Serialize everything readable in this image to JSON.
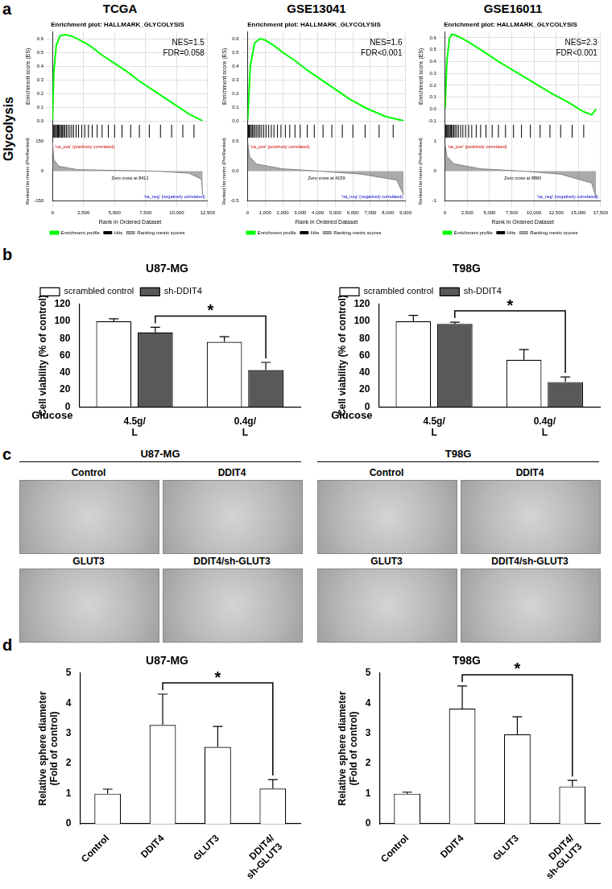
{
  "panel_labels": [
    "a",
    "b",
    "c",
    "d"
  ],
  "row_label": "Glycolysis",
  "chart_data": [
    {
      "type": "line",
      "title": "TCGA",
      "subtitle": "Enrichment plot: HALLMARK_GLYCOLYSIS",
      "xlabel": "Rank in Ordered Dataset",
      "ylabel": "Enrichment score (ES)",
      "y2label": "Ranked list metric (PreRanked)",
      "annotations": [
        "NES=1.5",
        "FDR=0.058"
      ],
      "metric_annotations": [
        "'na_pos' (positively correlated)",
        "Zero cross at 8412",
        "'na_neg' (negatively correlated)"
      ],
      "xlim": [
        0,
        12500
      ],
      "xticks": [
        0,
        {
          "value": 2500,
          "label": "2,500"
        },
        {
          "value": 5000,
          "label": "5,000"
        },
        {
          "value": 7500,
          "label": "7,500"
        },
        {
          "value": 10000,
          "label": "10,000"
        },
        {
          "value": 12500,
          "label": "12,500"
        }
      ],
      "ylim": [
        0,
        0.65
      ],
      "yticks": [
        {
          "value": 0,
          "label": "0.0"
        },
        0.1,
        0.2,
        0.3,
        0.4,
        0.5,
        0.6
      ],
      "y2lim": [
        -150,
        150
      ],
      "y2ticks": [
        -150,
        0,
        150
      ],
      "grid": true,
      "legend": "bottom",
      "series": [
        {
          "name": "Enrichment profile",
          "color": "#00ff00",
          "x": [
            0,
            100,
            300,
            600,
            1000,
            1500,
            2000,
            3000,
            4000,
            5000,
            6000,
            7000,
            8000,
            9000,
            10000,
            11000,
            12100
          ],
          "values": [
            0,
            0.35,
            0.55,
            0.62,
            0.63,
            0.62,
            0.6,
            0.55,
            0.48,
            0.42,
            0.36,
            0.29,
            0.23,
            0.17,
            0.11,
            0.05,
            0
          ]
        },
        {
          "name": "Ranking metric scores",
          "color": "#808080",
          "axis": "y2",
          "x": [
            0,
            100,
            500,
            2000,
            8412,
            11000,
            12000,
            12100
          ],
          "values": [
            150,
            60,
            25,
            8,
            0,
            -10,
            -40,
            -120
          ]
        }
      ],
      "hits": {
        "name": "Hits",
        "color": "#000000",
        "marker": "line",
        "x": [
          60,
          120,
          180,
          250,
          320,
          400,
          470,
          550,
          640,
          720,
          810,
          900,
          1000,
          1120,
          1250,
          1400,
          1550,
          1700,
          1900,
          2100,
          2350,
          2600,
          2900,
          3200,
          3600,
          4000,
          4500,
          5000,
          5600,
          6300,
          7000,
          7800,
          8700,
          9600,
          10500,
          11400
        ]
      }
    },
    {
      "type": "line",
      "title": "GSE13041",
      "subtitle": "Enrichment plot: HALLMARK_GLYCOLYSIS",
      "xlabel": "Rank in Ordered Dataset",
      "ylabel": "Enrichment score (ES)",
      "y2label": "Ranked list metric (PreRanked)",
      "annotations": [
        "NES=1.6",
        "FDR<0.001"
      ],
      "metric_annotations": [
        "'na_pos' (positively correlated)",
        "Zero cross at 4159",
        "'na_neg' (negatively correlated)"
      ],
      "xlim": [
        0,
        9000
      ],
      "xticks": [
        0,
        {
          "value": 1000,
          "label": "1,000"
        },
        {
          "value": 2000,
          "label": "2,000"
        },
        {
          "value": 3000,
          "label": "3,000"
        },
        {
          "value": 4000,
          "label": "4,000"
        },
        {
          "value": 5000,
          "label": "5,000"
        },
        {
          "value": 6000,
          "label": "6,000"
        },
        {
          "value": 7000,
          "label": "7,000"
        },
        {
          "value": 8000,
          "label": "8,000"
        },
        {
          "value": 9000,
          "label": "9,000"
        }
      ],
      "ylim": [
        0,
        0.65
      ],
      "yticks": [
        {
          "value": 0,
          "label": "0.0"
        },
        0.1,
        0.2,
        0.3,
        0.4,
        0.5,
        0.6
      ],
      "y2lim": [
        -0.5,
        0.5
      ],
      "y2ticks": [
        -0.5,
        {
          "value": 0,
          "label": "0.0"
        },
        0.5
      ],
      "grid": true,
      "legend": "bottom",
      "series": [
        {
          "name": "Enrichment profile",
          "color": "#00ff00",
          "x": [
            0,
            150,
            400,
            700,
            1000,
            1500,
            2000,
            2700,
            3400,
            4200,
            5000,
            5800,
            6800,
            7900,
            8900
          ],
          "values": [
            0,
            0.4,
            0.57,
            0.6,
            0.59,
            0.55,
            0.5,
            0.44,
            0.37,
            0.3,
            0.23,
            0.16,
            0.09,
            0.03,
            0
          ]
        },
        {
          "name": "Ranking metric scores",
          "color": "#808080",
          "axis": "y2",
          "x": [
            0,
            100,
            500,
            2000,
            4159,
            6500,
            8500,
            8900
          ],
          "values": [
            0.5,
            0.25,
            0.12,
            0.04,
            0,
            -0.05,
            -0.15,
            -0.4
          ]
        }
      ],
      "hits": {
        "name": "Hits",
        "color": "#000000",
        "marker": "line",
        "x": [
          40,
          90,
          150,
          210,
          280,
          350,
          430,
          520,
          610,
          700,
          800,
          920,
          1050,
          1200,
          1350,
          1500,
          1700,
          1900,
          2150,
          2400,
          2700,
          3000,
          3400,
          3800,
          4300,
          4800,
          5400,
          6000,
          6700,
          7500,
          8300
        ]
      }
    },
    {
      "type": "line",
      "title": "GSE16011",
      "subtitle": "Enrichment plot: HALLMARK_GLYCOLYSIS",
      "xlabel": "Rank in Ordered Dataset",
      "ylabel": "Enrichment score (ES)",
      "y2label": "Ranked list metric (PreRanked)",
      "annotations": [
        "NES=2.3",
        "FDR<0.001"
      ],
      "metric_annotations": [
        "'na_pos' (positively correlated)",
        "Zero cross at 8880",
        "'na_neg' (negatively correlated)"
      ],
      "xlim": [
        0,
        17500
      ],
      "xticks": [
        0,
        {
          "value": 2500,
          "label": "2,500"
        },
        {
          "value": 5000,
          "label": "5,000"
        },
        {
          "value": 7500,
          "label": "7,500"
        },
        {
          "value": 10000,
          "label": "10,000"
        },
        {
          "value": 12500,
          "label": "12,500"
        },
        {
          "value": 15000,
          "label": "15,000"
        },
        {
          "value": 17500,
          "label": "17,500"
        }
      ],
      "ylim": [
        -0.1,
        0.65
      ],
      "yticks": [
        -0.1,
        {
          "value": 0,
          "label": "0.0"
        },
        0.1,
        0.2,
        0.3,
        0.4,
        0.5,
        0.6
      ],
      "y2lim": [
        -1,
        1
      ],
      "y2ticks": [
        -1,
        0,
        1
      ],
      "grid": true,
      "legend": "bottom",
      "series": [
        {
          "name": "Enrichment profile",
          "color": "#00ff00",
          "x": [
            0,
            200,
            500,
            800,
            1500,
            2500,
            4000,
            6000,
            8000,
            10000,
            12000,
            14000,
            15500,
            16500,
            17000
          ],
          "values": [
            0,
            0.4,
            0.6,
            0.63,
            0.61,
            0.57,
            0.5,
            0.4,
            0.31,
            0.22,
            0.13,
            0.05,
            -0.02,
            -0.05,
            0
          ]
        },
        {
          "name": "Ranking metric scores",
          "color": "#808080",
          "axis": "y2",
          "x": [
            0,
            200,
            1000,
            4000,
            8880,
            13000,
            16500,
            17000
          ],
          "values": [
            0.9,
            0.5,
            0.25,
            0.08,
            0,
            -0.1,
            -0.4,
            -0.9
          ]
        }
      ],
      "hits": {
        "name": "Hits",
        "color": "#000000",
        "marker": "line",
        "x": [
          50,
          120,
          200,
          290,
          380,
          480,
          590,
          700,
          830,
          970,
          1120,
          1300,
          1500,
          1750,
          2000,
          2300,
          2650,
          3000,
          3500,
          4000,
          4600,
          5300,
          6000,
          6800,
          7700,
          8600,
          9600,
          10700,
          11800,
          13000,
          14300,
          15600
        ]
      }
    },
    {
      "type": "bar",
      "title": "U87-MG",
      "categories": [
        "4.5g/L",
        "0.4g/L"
      ],
      "xlabel": "Glucose",
      "ylabel": "Cell viability (% of control)",
      "ylim": [
        0,
        120
      ],
      "yticks": [
        0,
        20,
        40,
        60,
        80,
        100,
        120
      ],
      "grid": false,
      "legend": "top-left",
      "series": [
        {
          "name": "scrambled control",
          "color": "#ffffff",
          "values": [
            100,
            76
          ],
          "errors": [
            3,
            6
          ]
        },
        {
          "name": "sh-DDIT4",
          "color": "#595959",
          "values": [
            87,
            43
          ],
          "errors": [
            6,
            9
          ]
        }
      ],
      "annotations": [
        {
          "text": "*",
          "from": [
            "4.5g/L",
            "sh-DDIT4"
          ],
          "to": [
            "0.4g/L",
            "sh-DDIT4"
          ]
        }
      ]
    },
    {
      "type": "bar",
      "title": "T98G",
      "categories": [
        "4.5g/L",
        "0.4g/L"
      ],
      "xlabel": "Glucose",
      "ylabel": "Cell viability (% of control)",
      "ylim": [
        0,
        120
      ],
      "yticks": [
        0,
        20,
        40,
        60,
        80,
        100,
        120
      ],
      "grid": false,
      "legend": "top-left",
      "series": [
        {
          "name": "scrambled control",
          "color": "#ffffff",
          "values": [
            100,
            55
          ],
          "errors": [
            7,
            12
          ]
        },
        {
          "name": "sh-DDIT4",
          "color": "#595959",
          "values": [
            97,
            29
          ],
          "errors": [
            2,
            6
          ]
        }
      ],
      "annotations": [
        {
          "text": "*",
          "from": [
            "4.5g/L",
            "sh-DDIT4"
          ],
          "to": [
            "0.4g/L",
            "sh-DDIT4"
          ]
        }
      ]
    },
    {
      "type": "bar",
      "title": "U87-MG",
      "categories": [
        "Control",
        "DDIT4",
        "GLUT3",
        "DDIT4/sh-GLUT3"
      ],
      "ylabel": "Relative sphere diameter (Fold of control)",
      "ylim": [
        0,
        5
      ],
      "yticks": [
        0,
        1,
        2,
        3,
        4,
        5
      ],
      "grid": false,
      "color": "#ffffff",
      "values": [
        1,
        3.28,
        2.55,
        1.17
      ],
      "errors": [
        0.15,
        1.02,
        0.68,
        0.3
      ],
      "annotations": [
        {
          "text": "*",
          "from": "DDIT4",
          "to": "DDIT4/sh-GLUT3"
        }
      ]
    },
    {
      "type": "bar",
      "title": "T98G",
      "categories": [
        "Control",
        "DDIT4",
        "GLUT3",
        "DDIT4/sh-GLUT3"
      ],
      "ylabel": "Relative sphere diameter (Fold of control)",
      "ylim": [
        0,
        5
      ],
      "yticks": [
        0,
        1,
        2,
        3,
        4,
        5
      ],
      "grid": false,
      "color": "#ffffff",
      "values": [
        1,
        3.82,
        2.97,
        1.24
      ],
      "errors": [
        0.05,
        0.75,
        0.58,
        0.2
      ],
      "annotations": [
        {
          "text": "*",
          "from": "DDIT4",
          "to": "DDIT4/sh-GLUT3"
        }
      ]
    }
  ],
  "image_panels": [
    {
      "title": "U87-MG",
      "labels": [
        "Control",
        "DDIT4",
        "GLUT3",
        "DDIT4/sh-GLUT3"
      ]
    },
    {
      "title": "T98G",
      "labels": [
        "Control",
        "DDIT4",
        "GLUT3",
        "DDIT4/sh-GLUT3"
      ]
    }
  ]
}
